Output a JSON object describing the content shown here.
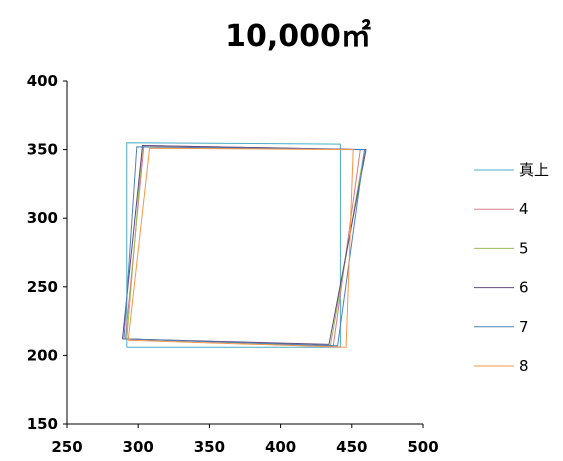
{
  "chart_data": {
    "type": "line",
    "title": "10,000㎡",
    "xlabel": "",
    "ylabel": "",
    "xlim": [
      250,
      500
    ],
    "ylim": [
      150,
      400
    ],
    "xticks": [
      250,
      300,
      350,
      400,
      450,
      500
    ],
    "yticks": [
      150,
      200,
      250,
      300,
      350,
      400
    ],
    "xtick_labels": [
      "250",
      "300",
      "350",
      "400",
      "450",
      "500"
    ],
    "ytick_labels": [
      "150",
      "200",
      "250",
      "300",
      "350",
      "400"
    ],
    "grid": false,
    "legend": "right",
    "series": [
      {
        "name": "真上",
        "color": "#4bacc6",
        "points": [
          [
            292,
            206
          ],
          [
            292,
            355
          ],
          [
            442,
            354
          ],
          [
            442,
            206
          ],
          [
            292,
            206
          ]
        ]
      },
      {
        "name": "4",
        "color": "#d97a8a",
        "points": [
          [
            291,
            212
          ],
          [
            304,
            353
          ],
          [
            456,
            350
          ],
          [
            437,
            207
          ],
          [
            291,
            212
          ]
        ]
      },
      {
        "name": "5",
        "color": "#9bbb59",
        "points": [
          [
            292,
            212
          ],
          [
            303,
            352
          ],
          [
            459,
            350
          ],
          [
            435,
            207
          ],
          [
            292,
            212
          ]
        ]
      },
      {
        "name": "6",
        "color": "#604a7b",
        "points": [
          [
            289,
            212
          ],
          [
            303,
            353
          ],
          [
            460,
            350
          ],
          [
            434,
            208
          ],
          [
            289,
            212
          ]
        ]
      },
      {
        "name": "7",
        "color": "#4f81bd",
        "points": [
          [
            290,
            212
          ],
          [
            299,
            352
          ],
          [
            459,
            350
          ],
          [
            440,
            207
          ],
          [
            290,
            212
          ]
        ]
      },
      {
        "name": "8",
        "color": "#f79646",
        "points": [
          [
            293,
            211
          ],
          [
            308,
            351
          ],
          [
            451,
            350
          ],
          [
            446,
            206
          ],
          [
            293,
            211
          ]
        ]
      }
    ]
  }
}
